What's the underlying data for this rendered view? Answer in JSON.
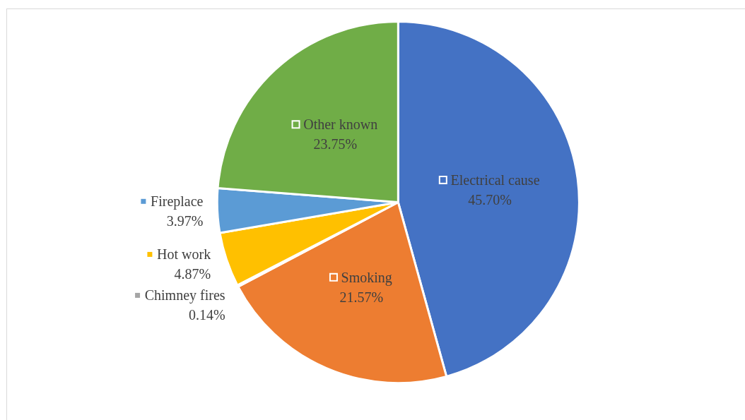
{
  "chart_data": {
    "type": "pie",
    "categories": [
      "Electrical cause",
      "Smoking",
      "Chimney fires",
      "Hot work",
      "Fireplace",
      "Other known"
    ],
    "values": [
      45.7,
      21.57,
      0.14,
      4.87,
      3.97,
      23.75
    ],
    "value_labels": [
      "45.70%",
      "21.57%",
      "0.14%",
      "4.87%",
      "3.97%",
      "23.75%"
    ],
    "colors": [
      "#4472c4",
      "#ed7d31",
      "#a5a5a5",
      "#ffc000",
      "#5b9bd5",
      "#70ad47"
    ],
    "legend": "left"
  }
}
